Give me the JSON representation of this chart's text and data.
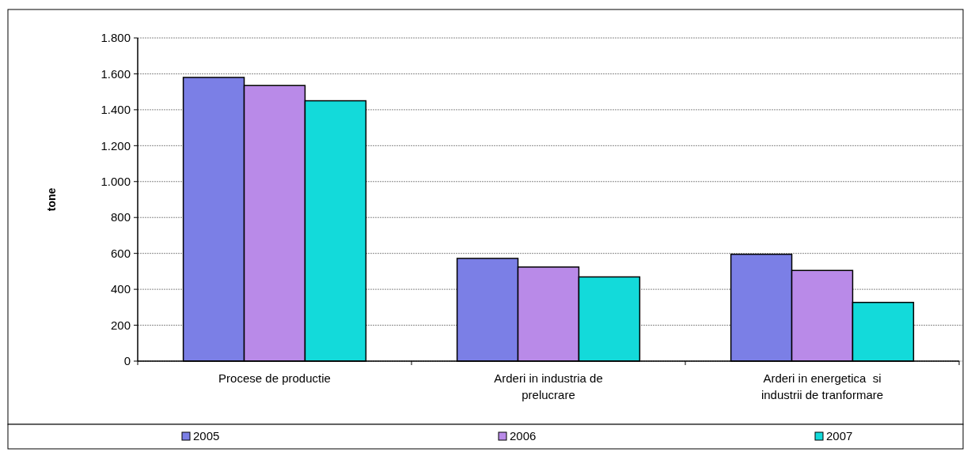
{
  "chart_data": {
    "type": "bar",
    "ylabel": "tone",
    "categories": [
      "Procese de productie",
      "Arderi in industria de prelucrare",
      "Arderi in energetica  si industrii de tranformare"
    ],
    "series": [
      {
        "name": "2005",
        "color": "#7b7fe6",
        "values": [
          1580,
          572,
          595
        ]
      },
      {
        "name": "2006",
        "color": "#b98ae8",
        "values": [
          1535,
          524,
          505
        ]
      },
      {
        "name": "2007",
        "color": "#13dada",
        "values": [
          1450,
          469,
          327
        ]
      }
    ],
    "ylim": [
      0,
      1800
    ],
    "yticks": [
      {
        "value": 0,
        "label": "0"
      },
      {
        "value": 200,
        "label": "200"
      },
      {
        "value": 400,
        "label": "400"
      },
      {
        "value": 600,
        "label": "600"
      },
      {
        "value": 800,
        "label": "800"
      },
      {
        "value": 1000,
        "label": "1.000"
      },
      {
        "value": 1200,
        "label": "1.200"
      },
      {
        "value": 1400,
        "label": "1.400"
      },
      {
        "value": 1600,
        "label": "1.600"
      },
      {
        "value": 1800,
        "label": "1.800"
      }
    ],
    "grid": "y",
    "legend": "bottom"
  }
}
